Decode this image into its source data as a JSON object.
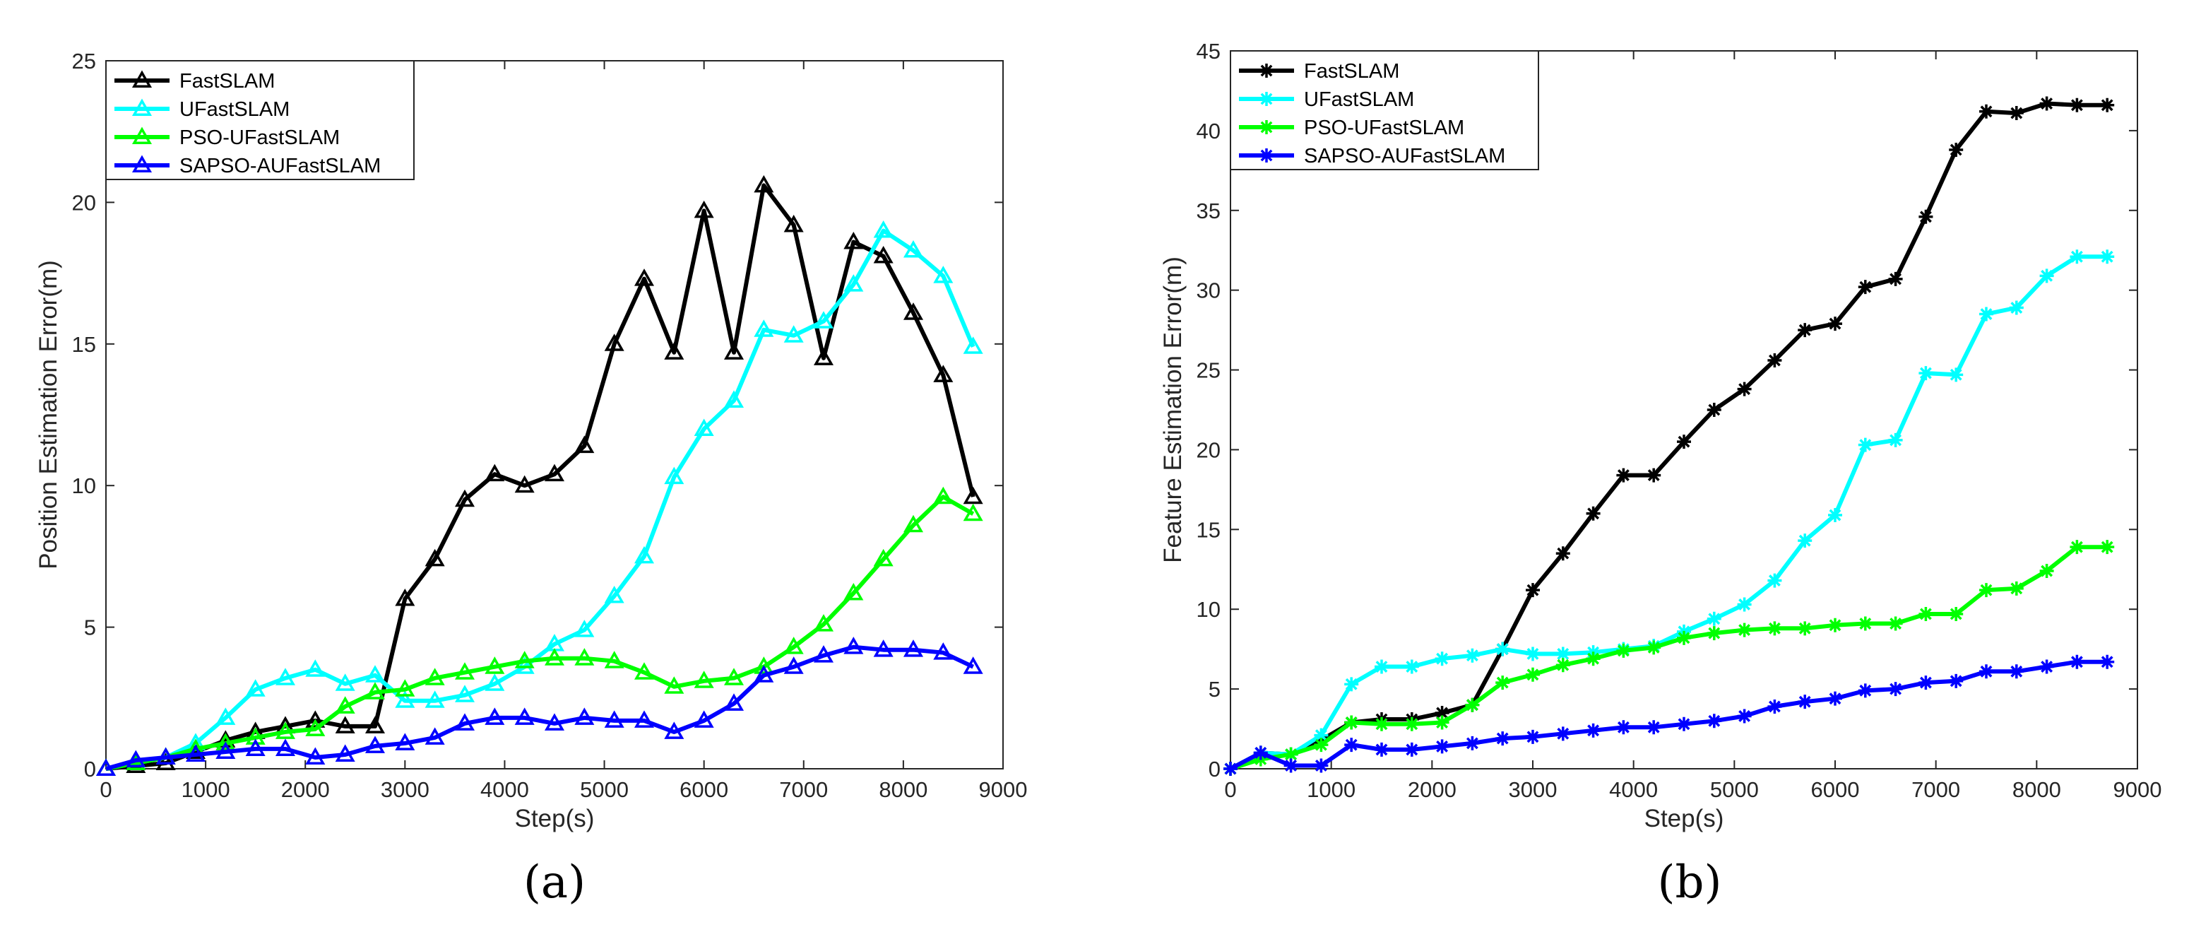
{
  "chart_data": [
    {
      "type": "line",
      "panel_label": "(a)",
      "xlabel": "Step(s)",
      "ylabel": "Position Estimation Error(m)",
      "xlim": [
        0,
        9000
      ],
      "ylim": [
        0,
        25
      ],
      "xticks": [
        0,
        1000,
        2000,
        3000,
        4000,
        5000,
        6000,
        7000,
        8000,
        9000
      ],
      "yticks": [
        0,
        5,
        10,
        15,
        20,
        25
      ],
      "grid": false,
      "legend_position": "top-left",
      "marker": "triangle",
      "x": [
        0,
        300,
        600,
        900,
        1200,
        1500,
        1800,
        2100,
        2400,
        2700,
        3000,
        3300,
        3600,
        3900,
        4200,
        4500,
        4800,
        5100,
        5400,
        5700,
        6000,
        6300,
        6600,
        6900,
        7200,
        7500,
        7800,
        8100,
        8400,
        8700
      ],
      "series": [
        {
          "name": "FastSLAM",
          "color": "#000000",
          "values": [
            0,
            0.1,
            0.2,
            0.6,
            1.0,
            1.3,
            1.5,
            1.7,
            1.5,
            1.5,
            6.0,
            7.4,
            9.5,
            10.4,
            10.0,
            10.4,
            11.4,
            15.0,
            17.3,
            14.7,
            19.7,
            14.7,
            20.6,
            19.2,
            14.5,
            18.6,
            18.1,
            16.1,
            13.9,
            9.6
          ]
        },
        {
          "name": "UFastSLAM",
          "color": "#00FFFF",
          "values": [
            0,
            0.2,
            0.4,
            0.9,
            1.8,
            2.8,
            3.2,
            3.5,
            3.0,
            3.3,
            2.4,
            2.4,
            2.6,
            3.0,
            3.6,
            4.4,
            4.9,
            6.1,
            7.5,
            10.3,
            12.0,
            13.0,
            15.5,
            15.3,
            15.8,
            17.1,
            19.0,
            18.3,
            17.4,
            14.9
          ]
        },
        {
          "name": "PSO-UFastSLAM",
          "color": "#00FF00",
          "values": [
            0,
            0.2,
            0.4,
            0.7,
            0.9,
            1.1,
            1.3,
            1.4,
            2.2,
            2.7,
            2.8,
            3.2,
            3.4,
            3.6,
            3.8,
            3.9,
            3.9,
            3.8,
            3.4,
            2.9,
            3.1,
            3.2,
            3.6,
            4.3,
            5.1,
            6.2,
            7.4,
            8.6,
            9.6,
            9.0
          ]
        },
        {
          "name": "SAPSO-AUFastSLAM",
          "color": "#0000FF",
          "values": [
            0,
            0.3,
            0.4,
            0.5,
            0.6,
            0.7,
            0.7,
            0.4,
            0.5,
            0.8,
            0.9,
            1.1,
            1.6,
            1.8,
            1.8,
            1.6,
            1.8,
            1.7,
            1.7,
            1.3,
            1.7,
            2.3,
            3.3,
            3.6,
            4.0,
            4.3,
            4.2,
            4.2,
            4.1,
            3.6
          ]
        }
      ]
    },
    {
      "type": "line",
      "panel_label": "(b)",
      "xlabel": "Step(s)",
      "ylabel": "Feature Estimation Error(m)",
      "xlim": [
        0,
        9000
      ],
      "ylim": [
        0,
        45
      ],
      "xticks": [
        0,
        1000,
        2000,
        3000,
        4000,
        5000,
        6000,
        7000,
        8000,
        9000
      ],
      "yticks": [
        0,
        5,
        10,
        15,
        20,
        25,
        30,
        35,
        40,
        45
      ],
      "grid": false,
      "legend_position": "top-left",
      "marker": "asterisk",
      "x": [
        0,
        300,
        600,
        900,
        1200,
        1500,
        1800,
        2100,
        2400,
        2700,
        3000,
        3300,
        3600,
        3900,
        4200,
        4500,
        4800,
        5100,
        5400,
        5700,
        6000,
        6300,
        6600,
        6900,
        7200,
        7500,
        7800,
        8100,
        8400,
        8700
      ],
      "series": [
        {
          "name": "FastSLAM",
          "color": "#000000",
          "values": [
            0,
            1.0,
            0.9,
            1.8,
            2.9,
            3.1,
            3.1,
            3.5,
            4.0,
            7.5,
            11.2,
            13.5,
            16.0,
            18.4,
            18.4,
            20.5,
            22.5,
            23.8,
            25.6,
            27.5,
            27.9,
            30.2,
            30.7,
            34.6,
            38.8,
            41.2,
            41.1,
            41.7,
            41.6,
            41.6
          ]
        },
        {
          "name": "UFastSLAM",
          "color": "#00FFFF",
          "values": [
            0,
            1.0,
            0.9,
            2.1,
            5.3,
            6.4,
            6.4,
            6.9,
            7.1,
            7.5,
            7.2,
            7.2,
            7.3,
            7.5,
            7.7,
            8.6,
            9.4,
            10.3,
            11.8,
            14.3,
            15.9,
            20.3,
            20.6,
            24.8,
            24.7,
            28.5,
            28.9,
            30.9,
            32.1,
            32.1
          ]
        },
        {
          "name": "PSO-UFastSLAM",
          "color": "#00FF00",
          "values": [
            0,
            0.6,
            0.9,
            1.5,
            2.9,
            2.8,
            2.8,
            2.9,
            4.0,
            5.4,
            5.9,
            6.5,
            6.9,
            7.4,
            7.6,
            8.2,
            8.5,
            8.7,
            8.8,
            8.8,
            9.0,
            9.1,
            9.1,
            9.7,
            9.7,
            11.2,
            11.3,
            12.4,
            13.9,
            13.9
          ]
        },
        {
          "name": "SAPSO-AUFastSLAM",
          "color": "#0000FF",
          "values": [
            0,
            1.0,
            0.2,
            0.2,
            1.5,
            1.2,
            1.2,
            1.4,
            1.6,
            1.9,
            2.0,
            2.2,
            2.4,
            2.6,
            2.6,
            2.8,
            3.0,
            3.3,
            3.9,
            4.2,
            4.4,
            4.9,
            5.0,
            5.4,
            5.5,
            6.1,
            6.1,
            6.4,
            6.7,
            6.7
          ]
        }
      ]
    }
  ]
}
